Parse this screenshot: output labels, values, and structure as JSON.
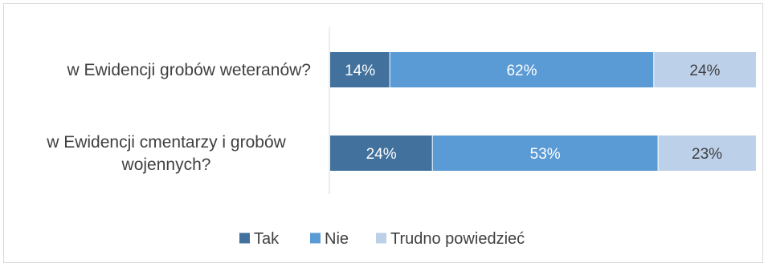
{
  "chart_data": {
    "type": "bar",
    "orientation": "horizontal",
    "stacked": true,
    "categories": [
      [
        "w Ewidencji grobów weteranów?"
      ],
      [
        "w Ewidencji cmentarzy i grobów",
        "wojennych?"
      ]
    ],
    "series": [
      {
        "name": "Tak",
        "color": "#41719c",
        "values": [
          14,
          24
        ]
      },
      {
        "name": "Nie",
        "color": "#5b9bd5",
        "values": [
          62,
          53
        ]
      },
      {
        "name": "Trudno powiedzieć",
        "color": "#bdd0ea",
        "values": [
          24,
          23
        ]
      }
    ],
    "value_suffix": "%",
    "xlim": [
      0,
      100
    ],
    "grid": false,
    "legend_position": "bottom"
  }
}
